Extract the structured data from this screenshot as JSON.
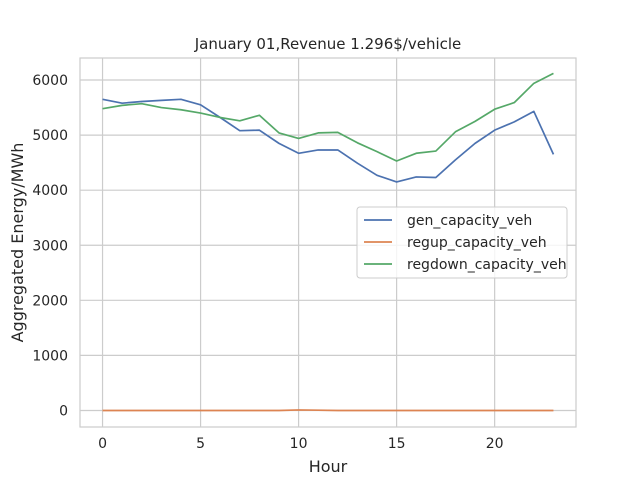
{
  "chart_data": {
    "type": "line",
    "title": "January 01,Revenue 1.296$/vehicle",
    "xlabel": "Hour",
    "ylabel": "Aggregated Energy/MWh",
    "xlim": [
      -1.15,
      24.15
    ],
    "ylim": [
      -300,
      6400
    ],
    "xticks": [
      0,
      5,
      10,
      15,
      20
    ],
    "yticks": [
      0,
      1000,
      2000,
      3000,
      4000,
      5000,
      6000
    ],
    "grid": true,
    "legend_position": "center-right",
    "x": [
      0,
      1,
      2,
      3,
      4,
      5,
      6,
      7,
      8,
      9,
      10,
      11,
      12,
      13,
      14,
      15,
      16,
      17,
      18,
      19,
      20,
      21,
      22,
      23
    ],
    "series": [
      {
        "name": "gen_capacity_veh",
        "color": "#4c72b0",
        "values": [
          5650,
          5580,
          5610,
          5630,
          5650,
          5550,
          5320,
          5080,
          5090,
          4850,
          4670,
          4730,
          4730,
          4490,
          4270,
          4150,
          4240,
          4230,
          4550,
          4850,
          5090,
          5240,
          5430,
          4650
        ]
      },
      {
        "name": "regup_capacity_veh",
        "color": "#dd8452",
        "values": [
          0,
          0,
          0,
          0,
          0,
          0,
          0,
          0,
          0,
          0,
          10,
          5,
          0,
          0,
          0,
          0,
          0,
          0,
          0,
          0,
          0,
          0,
          0,
          0
        ]
      },
      {
        "name": "regdown_capacity_veh",
        "color": "#55a868",
        "values": [
          5480,
          5540,
          5570,
          5500,
          5460,
          5400,
          5320,
          5260,
          5360,
          5040,
          4940,
          5040,
          5050,
          4860,
          4700,
          4530,
          4670,
          4710,
          5060,
          5250,
          5470,
          5590,
          5940,
          6120
        ]
      }
    ]
  }
}
